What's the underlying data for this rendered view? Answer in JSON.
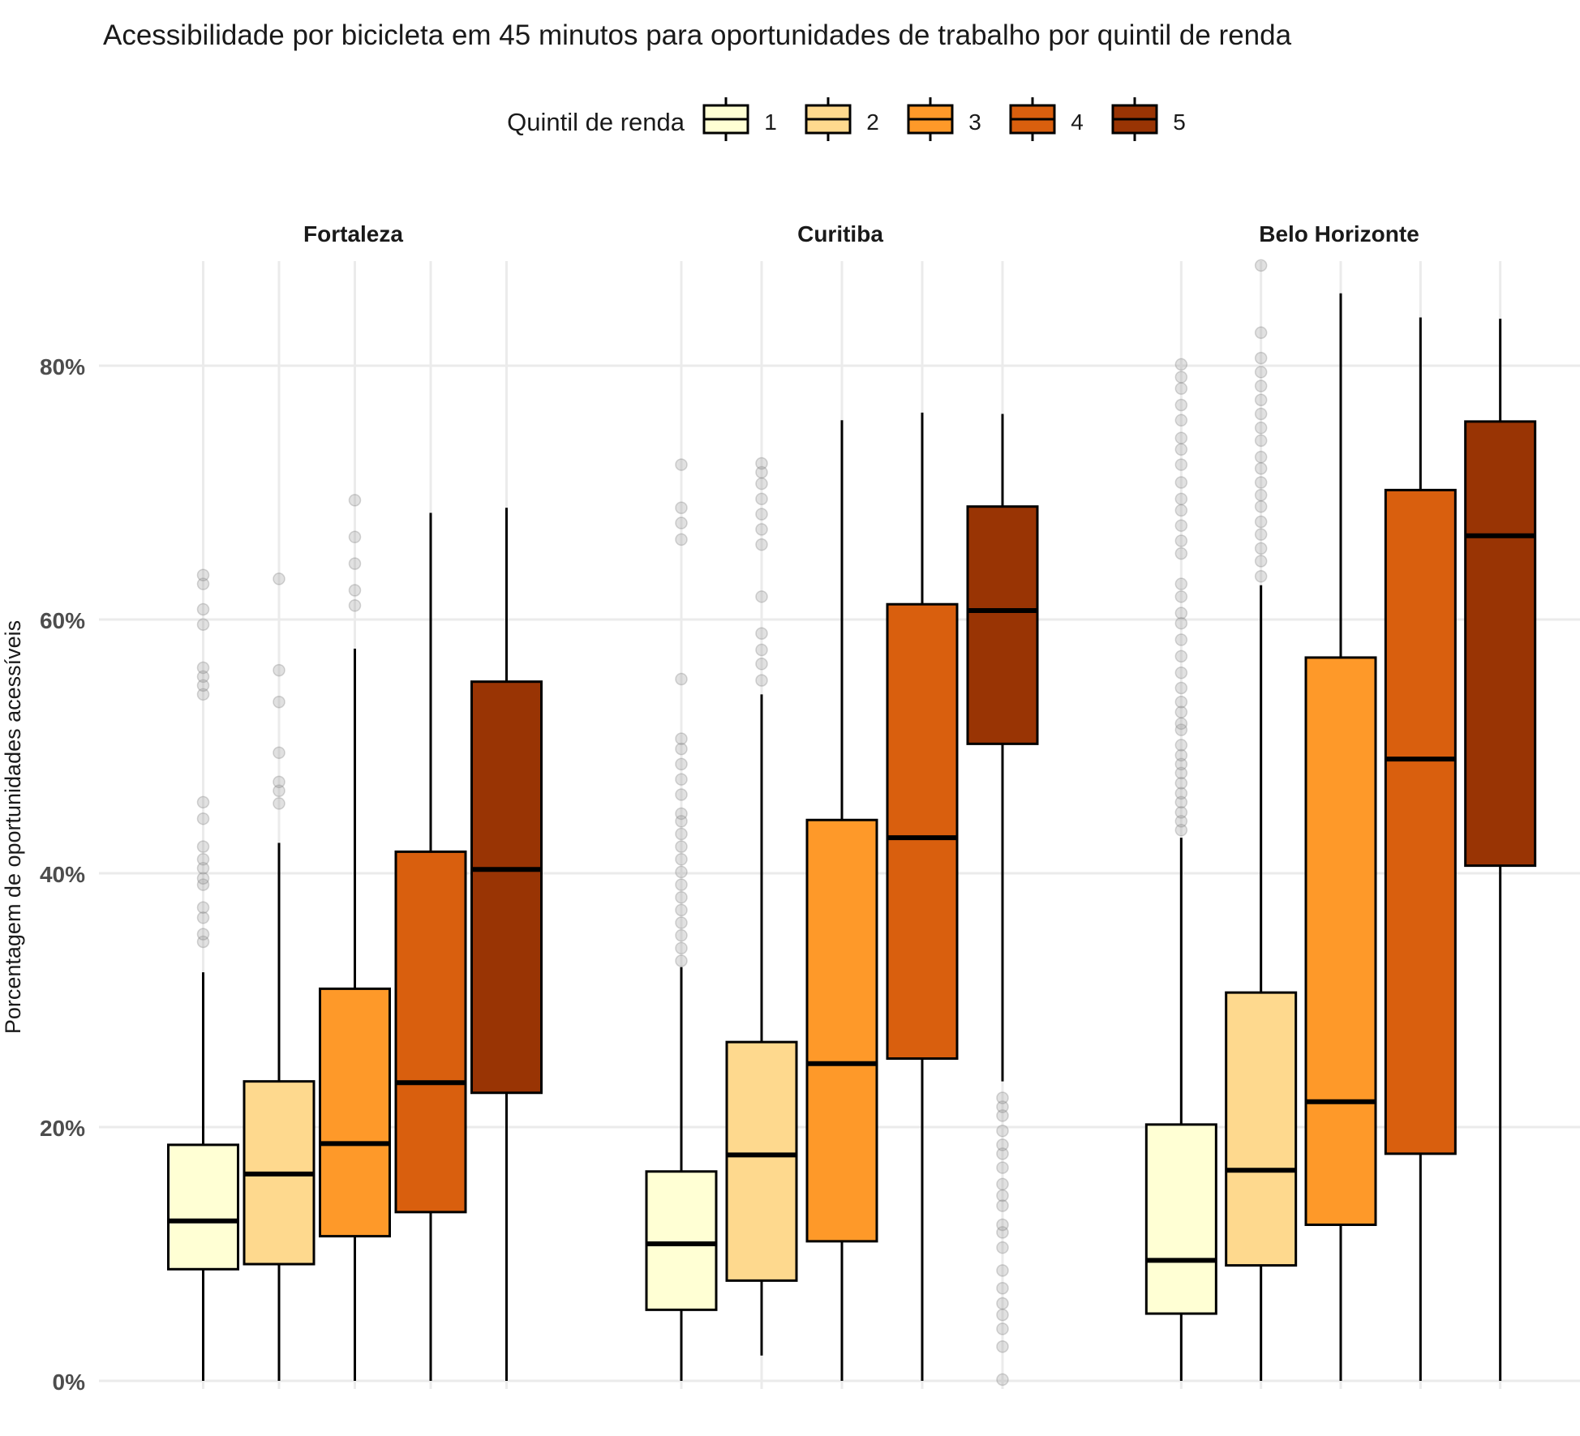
{
  "chart_data": {
    "type": "boxplot",
    "title": "Acessibilidade por bicicleta em 45 minutos para oportunidades de trabalho por quintil de renda",
    "ylabel": "Porcentagem de oportunidades acessíveis",
    "xlabel": "",
    "ylim": [
      0,
      0.88
    ],
    "yticks": [
      0,
      0.2,
      0.4,
      0.6,
      0.8
    ],
    "ytick_labels": [
      "0%",
      "20%",
      "40%",
      "60%",
      "80%"
    ],
    "grid": true,
    "legend": {
      "title": "Quintil de renda",
      "position": "top",
      "entries": [
        "1",
        "2",
        "3",
        "4",
        "5"
      ],
      "colors": [
        "#FFFFD4",
        "#FED98E",
        "#FE9929",
        "#D95F0E",
        "#993404"
      ]
    },
    "facets": [
      {
        "name": "Fortaleza",
        "boxes": [
          {
            "quintile": "1",
            "min": 0.0,
            "q1": 0.088,
            "median": 0.126,
            "q3": 0.186,
            "max": 0.322,
            "outliers": [
              0.346,
              0.352,
              0.365,
              0.373,
              0.391,
              0.396,
              0.404,
              0.411,
              0.421,
              0.443,
              0.456,
              0.541,
              0.548,
              0.555,
              0.562,
              0.596,
              0.608,
              0.628,
              0.635
            ]
          },
          {
            "quintile": "2",
            "min": 0.0,
            "q1": 0.092,
            "median": 0.163,
            "q3": 0.236,
            "max": 0.424,
            "outliers": [
              0.455,
              0.465,
              0.472,
              0.495,
              0.535,
              0.56,
              0.632
            ]
          },
          {
            "quintile": "3",
            "min": 0.0,
            "q1": 0.114,
            "median": 0.187,
            "q3": 0.309,
            "max": 0.577,
            "outliers": [
              0.611,
              0.623,
              0.644,
              0.665,
              0.694
            ]
          },
          {
            "quintile": "4",
            "min": 0.0,
            "q1": 0.133,
            "median": 0.235,
            "q3": 0.417,
            "max": 0.684,
            "outliers": []
          },
          {
            "quintile": "5",
            "min": 0.0,
            "q1": 0.227,
            "median": 0.403,
            "q3": 0.551,
            "max": 0.688,
            "outliers": []
          }
        ]
      },
      {
        "name": "Curitiba",
        "boxes": [
          {
            "quintile": "1",
            "min": 0.0,
            "q1": 0.056,
            "median": 0.108,
            "q3": 0.165,
            "max": 0.326,
            "outliers": [
              0.331,
              0.341,
              0.351,
              0.361,
              0.371,
              0.381,
              0.391,
              0.401,
              0.411,
              0.421,
              0.431,
              0.441,
              0.447,
              0.462,
              0.474,
              0.486,
              0.498,
              0.506,
              0.553,
              0.663,
              0.676,
              0.688,
              0.722
            ]
          },
          {
            "quintile": "2",
            "min": 0.02,
            "q1": 0.079,
            "median": 0.178,
            "q3": 0.267,
            "max": 0.541,
            "outliers": [
              0.552,
              0.565,
              0.576,
              0.589,
              0.618,
              0.659,
              0.671,
              0.683,
              0.695,
              0.707,
              0.716,
              0.723
            ]
          },
          {
            "quintile": "3",
            "min": 0.0,
            "q1": 0.11,
            "median": 0.25,
            "q3": 0.442,
            "max": 0.757,
            "outliers": []
          },
          {
            "quintile": "4",
            "min": 0.0,
            "q1": 0.254,
            "median": 0.428,
            "q3": 0.612,
            "max": 0.763,
            "outliers": []
          },
          {
            "quintile": "5",
            "min": 0.236,
            "q1": 0.502,
            "median": 0.607,
            "q3": 0.689,
            "max": 0.762,
            "outliers": [
              0.001,
              0.027,
              0.041,
              0.052,
              0.061,
              0.073,
              0.087,
              0.105,
              0.117,
              0.123,
              0.138,
              0.146,
              0.155,
              0.168,
              0.179,
              0.186,
              0.197,
              0.209,
              0.216,
              0.223
            ]
          }
        ]
      },
      {
        "name": "Belo Horizonte",
        "boxes": [
          {
            "quintile": "1",
            "min": 0.0,
            "q1": 0.053,
            "median": 0.095,
            "q3": 0.202,
            "max": 0.428,
            "outliers": [
              0.434,
              0.441,
              0.448,
              0.456,
              0.463,
              0.471,
              0.479,
              0.486,
              0.493,
              0.501,
              0.513,
              0.518,
              0.527,
              0.535,
              0.546,
              0.558,
              0.571,
              0.584,
              0.597,
              0.605,
              0.618,
              0.628,
              0.652,
              0.662,
              0.674,
              0.686,
              0.695,
              0.708,
              0.722,
              0.734,
              0.743,
              0.757,
              0.769,
              0.782,
              0.791,
              0.801
            ]
          },
          {
            "quintile": "2",
            "min": 0.0,
            "q1": 0.091,
            "median": 0.166,
            "q3": 0.306,
            "max": 0.627,
            "outliers": [
              0.634,
              0.646,
              0.656,
              0.667,
              0.677,
              0.689,
              0.698,
              0.708,
              0.719,
              0.728,
              0.741,
              0.751,
              0.762,
              0.773,
              0.784,
              0.795,
              0.806,
              0.826,
              0.879
            ]
          },
          {
            "quintile": "3",
            "min": 0.0,
            "q1": 0.123,
            "median": 0.22,
            "q3": 0.57,
            "max": 0.857,
            "outliers": []
          },
          {
            "quintile": "4",
            "min": 0.0,
            "q1": 0.179,
            "median": 0.49,
            "q3": 0.702,
            "max": 0.838,
            "outliers": []
          },
          {
            "quintile": "5",
            "min": 0.0,
            "q1": 0.406,
            "median": 0.666,
            "q3": 0.756,
            "max": 0.837,
            "outliers": []
          }
        ]
      }
    ]
  }
}
